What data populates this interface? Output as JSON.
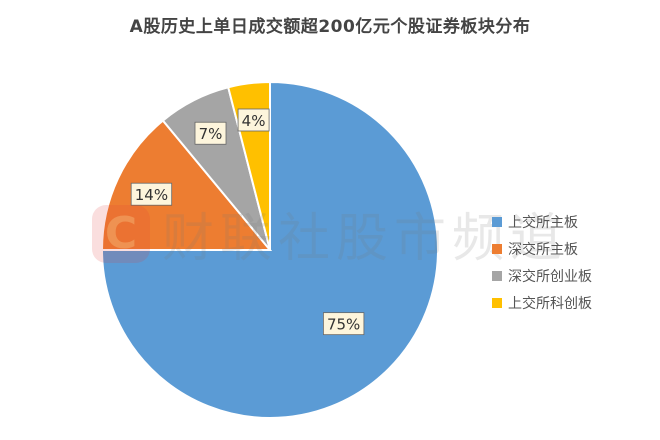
{
  "chart_data": {
    "type": "pie",
    "title": "A股历史上单日成交额超200亿元个股证券板块分布",
    "unit": "%",
    "legend_position": "right",
    "slices": [
      {
        "name": "上交所主板",
        "value": 75,
        "label": "75%",
        "color": "#5b9bd5"
      },
      {
        "name": "深交所主板",
        "value": 14,
        "label": "14%",
        "color": "#ed7d31"
      },
      {
        "name": "深交所创业板",
        "value": 7,
        "label": "7%",
        "color": "#a5a5a5"
      },
      {
        "name": "上交所科创板",
        "value": 4,
        "label": "4%",
        "color": "#ffc000"
      }
    ]
  },
  "watermark": {
    "text": "财联社股市频道",
    "logo_text": "C"
  }
}
